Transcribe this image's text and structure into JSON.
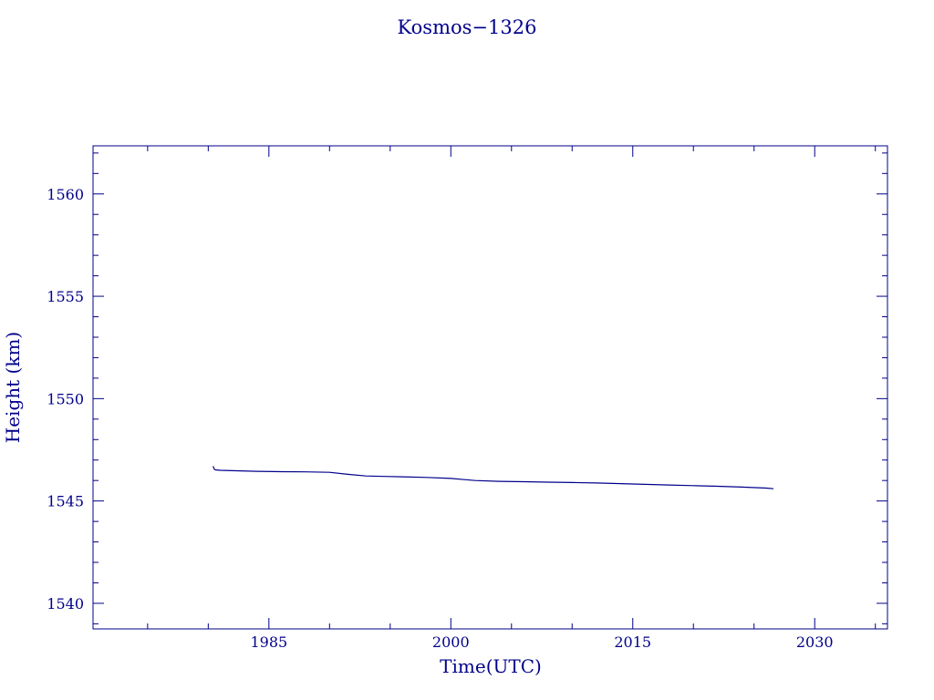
{
  "chart_data": {
    "type": "line",
    "title": "Kosmos−1326",
    "xlabel": "Time(UTC)",
    "ylabel": "Height (km)",
    "xlim": [
      1970.5,
      2036.0
    ],
    "ylim": [
      1538.75,
      1562.35
    ],
    "x_ticks": [
      1985,
      2000,
      2015,
      2030
    ],
    "x_tick_labels": [
      "1985",
      "2000",
      "2015",
      "2030"
    ],
    "y_ticks": [
      1540,
      1545,
      1550,
      1555,
      1560
    ],
    "y_tick_labels": [
      "1540",
      "1545",
      "1550",
      "1555",
      "1560"
    ],
    "grid": false,
    "color": "#00008b",
    "series": [
      {
        "x": [
          1980.4,
          1980.5,
          1980.6,
          1981.0,
          1982.0,
          1984.0,
          1986.0,
          1988.0,
          1990.0,
          1991.5,
          1993.0,
          1994.5,
          1996.0,
          1998.0,
          2000.0,
          2002.0,
          2004.0,
          2006.0,
          2008.0,
          2010.0,
          2012.0,
          2014.0,
          2016.0,
          2018.0,
          2020.0,
          2022.0,
          2024.0,
          2026.0,
          2026.6
        ],
        "y": [
          1546.7,
          1546.55,
          1546.52,
          1546.5,
          1546.48,
          1546.45,
          1546.43,
          1546.42,
          1546.4,
          1546.3,
          1546.22,
          1546.2,
          1546.18,
          1546.15,
          1546.1,
          1546.0,
          1545.96,
          1545.94,
          1545.92,
          1545.9,
          1545.88,
          1545.85,
          1545.81,
          1545.78,
          1545.75,
          1545.72,
          1545.68,
          1545.63,
          1545.6
        ]
      }
    ]
  }
}
